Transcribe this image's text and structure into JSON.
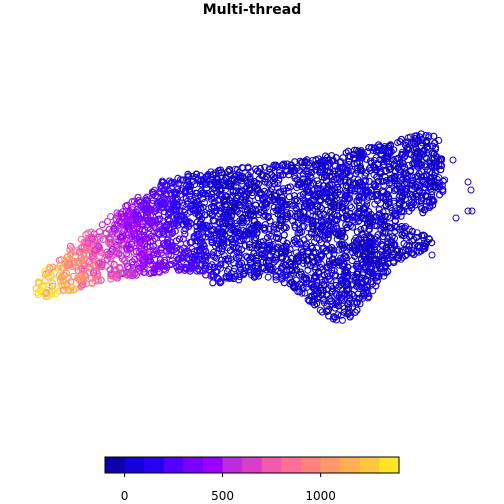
{
  "chart_data": {
    "type": "scatter",
    "title": "Multi-thread",
    "marker": "open-circle",
    "region": "North Carolina",
    "color_scale": {
      "type": "stepped",
      "min": -100,
      "max": 1400,
      "breaks": [
        -100,
        0,
        100,
        200,
        300,
        400,
        500,
        600,
        700,
        800,
        900,
        1000,
        1100,
        1200,
        1300,
        1400
      ],
      "colors": [
        "#0D00AA",
        "#1400DD",
        "#2600F5",
        "#5300FF",
        "#7A00FF",
        "#9E00FF",
        "#BE2CDD",
        "#DA3DC8",
        "#F25AAE",
        "#FF6E97",
        "#FF827F",
        "#FF9967",
        "#FFAE52",
        "#FFC83C",
        "#FFE525",
        "#FFFF00"
      ],
      "tick_values": [
        0,
        500,
        1000
      ],
      "tick_labels": [
        "0",
        "500",
        "1000"
      ],
      "legend_position": "bottom"
    },
    "value_gradient": {
      "description": "value decreases from west (high) to east (low)",
      "west_value": 1350,
      "east_value": 20
    }
  }
}
